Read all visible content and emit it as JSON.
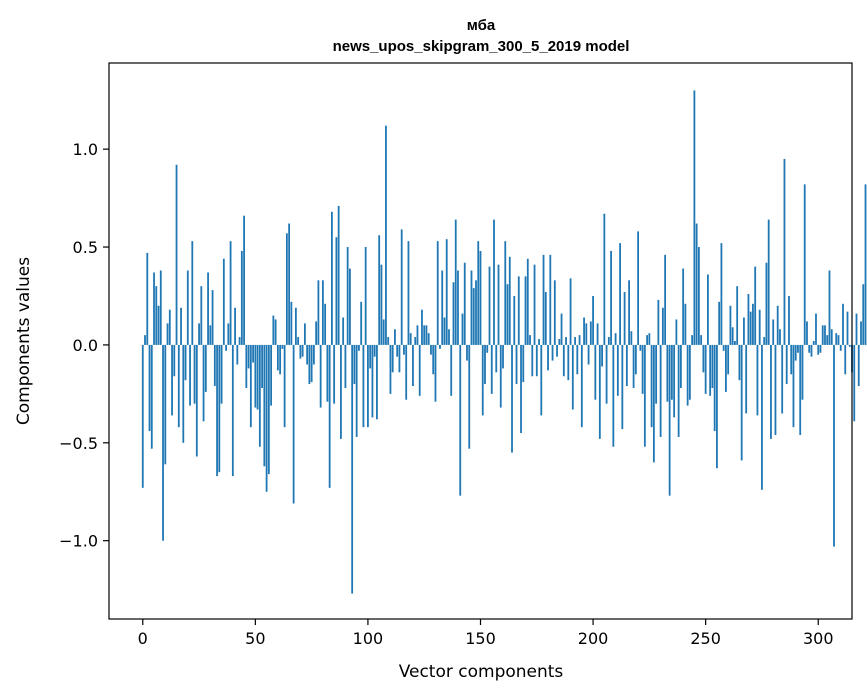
{
  "chart_data": {
    "type": "bar",
    "title_lines": [
      "мба",
      "news_upos_skipgram_300_5_2019 model"
    ],
    "xlabel": "Vector components",
    "ylabel": "Components values",
    "xlim": [
      -15,
      315
    ],
    "ylim": [
      -1.4,
      1.44
    ],
    "x_ticks": [
      0,
      50,
      100,
      150,
      200,
      250,
      300
    ],
    "x_tick_labels": [
      "0",
      "50",
      "100",
      "150",
      "200",
      "250",
      "300"
    ],
    "y_ticks": [
      -1.0,
      -0.5,
      0.0,
      0.5,
      1.0
    ],
    "y_tick_labels": [
      "−1.0",
      "−0.5",
      "0.0",
      "0.5",
      "1.0"
    ],
    "bar_color": "#1f77b4",
    "series": [
      {
        "name": "components",
        "values": [
          -0.73,
          0.05,
          0.47,
          -0.44,
          -0.53,
          0.37,
          0.3,
          0.2,
          0.38,
          -1.0,
          -0.61,
          0.11,
          0.18,
          -0.36,
          -0.16,
          0.92,
          -0.42,
          0.19,
          -0.5,
          -0.18,
          0.38,
          -0.31,
          0.53,
          -0.3,
          -0.57,
          0.11,
          0.3,
          -0.39,
          -0.24,
          0.37,
          0.1,
          0.28,
          -0.21,
          -0.67,
          -0.65,
          -0.3,
          0.44,
          -0.03,
          0.11,
          0.53,
          -0.67,
          0.19,
          -0.1,
          0.04,
          0.48,
          0.66,
          -0.22,
          -0.12,
          -0.42,
          -0.09,
          -0.32,
          -0.33,
          -0.52,
          -0.22,
          -0.62,
          -0.75,
          -0.66,
          -0.31,
          0.15,
          0.13,
          -0.13,
          -0.15,
          -0.02,
          -0.42,
          0.57,
          0.62,
          0.22,
          -0.81,
          0.19,
          0.04,
          -0.07,
          -0.06,
          0.11,
          -0.1,
          -0.2,
          -0.19,
          -0.1,
          0.12,
          0.33,
          -0.32,
          0.33,
          0.21,
          -0.29,
          -0.73,
          0.68,
          -0.3,
          0.55,
          0.71,
          -0.48,
          0.14,
          -0.22,
          0.5,
          0.39,
          -1.27,
          -0.2,
          -0.47,
          -0.03,
          0.22,
          -0.42,
          0.5,
          -0.42,
          -0.12,
          -0.37,
          -0.06,
          -0.38,
          0.56,
          0.41,
          0.13,
          1.12,
          0.04,
          -0.25,
          -0.14,
          0.08,
          -0.06,
          -0.14,
          0.59,
          -0.05,
          -0.28,
          0.53,
          0.06,
          -0.21,
          0.04,
          0.1,
          -0.26,
          0.18,
          0.1,
          0.1,
          0.06,
          -0.05,
          -0.15,
          -0.29,
          0.53,
          -0.02,
          0.38,
          0.14,
          0.54,
          0.08,
          -0.26,
          0.32,
          0.64,
          0.38,
          -0.77,
          0.16,
          0.42,
          -0.08,
          -0.53,
          0.38,
          0.29,
          0.33,
          0.53,
          0.48,
          -0.36,
          -0.2,
          -0.04,
          0.4,
          -0.25,
          0.64,
          -0.14,
          0.41,
          -0.32,
          -0.12,
          0.53,
          0.31,
          0.45,
          -0.55,
          0.25,
          -0.2,
          0.35,
          -0.45,
          -0.19,
          0.35,
          0.44,
          0.05,
          -0.16,
          0.41,
          -0.16,
          0.03,
          -0.36,
          0.46,
          0.27,
          -0.13,
          0.46,
          -0.08,
          0.33,
          -0.06,
          0.03,
          0.16,
          -0.16,
          0.04,
          -0.18,
          0.34,
          -0.33,
          0.04,
          -0.15,
          0.05,
          -0.42,
          0.14,
          0.11,
          -0.1,
          0.12,
          0.25,
          -0.28,
          0.11,
          -0.48,
          -0.11,
          0.67,
          -0.3,
          0.04,
          0.48,
          -0.52,
          0.06,
          -0.26,
          0.52,
          -0.43,
          0.27,
          -0.21,
          0.33,
          0.07,
          -0.22,
          -0.15,
          0.58,
          -0.03,
          -0.25,
          -0.52,
          0.05,
          0.06,
          -0.42,
          -0.6,
          -0.3,
          0.23,
          -0.47,
          0.19,
          0.46,
          -0.29,
          -0.77,
          -0.28,
          -0.37,
          0.13,
          -0.47,
          -0.22,
          0.39,
          0.21,
          -0.31,
          -0.28,
          0.05,
          1.3,
          0.62,
          0.5,
          0.05,
          -0.14,
          -0.25,
          0.36,
          -0.26,
          -0.22,
          -0.44,
          -0.63,
          0.22,
          0.52,
          -0.03,
          -0.24,
          -0.15,
          0.2,
          0.09,
          0.02,
          0.3,
          -0.18,
          -0.59,
          0.14,
          -0.35,
          0.26,
          0.17,
          0.21,
          0.4,
          -0.36,
          0.18,
          -0.74,
          0.04,
          0.42,
          0.64,
          -0.48,
          0.13,
          -0.46,
          0.2,
          0.08,
          -0.35,
          0.95,
          -0.2,
          0.25,
          -0.15,
          -0.42,
          -0.08,
          -0.04,
          -0.46,
          -0.28,
          0.82,
          0.12,
          -0.04,
          -0.06,
          0.02,
          0.16,
          -0.05,
          -0.04,
          0.1,
          0.1,
          0.05,
          0.38,
          0.08,
          -1.03,
          0.06,
          0.05,
          -0.03,
          0.21,
          -0.15,
          0.17,
          -0.01,
          -0.14,
          -0.39,
          0.16,
          -0.21,
          0.12,
          0.31,
          0.82
        ]
      }
    ]
  }
}
